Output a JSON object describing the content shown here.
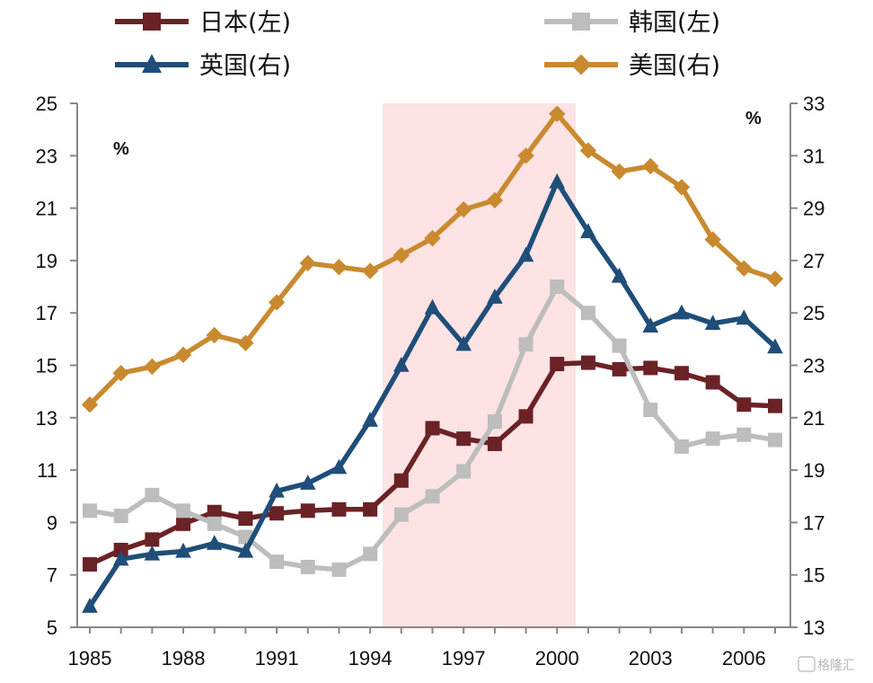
{
  "chart_data": {
    "type": "line",
    "title": "",
    "x": [
      1985,
      1986,
      1987,
      1988,
      1989,
      1990,
      1991,
      1992,
      1993,
      1994,
      1995,
      1996,
      1997,
      1998,
      1999,
      2000,
      2001,
      2002,
      2003,
      2004,
      2005,
      2006,
      2007
    ],
    "x_tick_labels": [
      "1985",
      "1988",
      "1991",
      "1994",
      "1997",
      "2000",
      "2003",
      "2006"
    ],
    "x_tick_values": [
      1985,
      1988,
      1991,
      1994,
      1997,
      2000,
      2003,
      2006
    ],
    "y_left": {
      "unit": "%",
      "ylim": [
        5,
        25
      ],
      "ticks": [
        "5",
        "7",
        "9",
        "11",
        "13",
        "15",
        "17",
        "19",
        "21",
        "23",
        "25"
      ]
    },
    "y_right": {
      "unit": "%",
      "ylim": [
        13,
        33
      ],
      "ticks": [
        "13",
        "15",
        "17",
        "19",
        "21",
        "23",
        "25",
        "27",
        "29",
        "31",
        "33"
      ]
    },
    "shaded_region": {
      "x_start": 1994.4,
      "x_end": 2000.6,
      "color": "#fde3e4"
    },
    "grid": false,
    "legend_position": "top",
    "series": [
      {
        "name": "日本(左)",
        "axis": "left",
        "color": "#6b2226",
        "marker": "square",
        "values": [
          7.4,
          7.95,
          8.35,
          8.95,
          9.4,
          9.15,
          9.35,
          9.45,
          9.5,
          9.5,
          10.6,
          12.6,
          12.2,
          12.0,
          13.05,
          15.05,
          15.1,
          14.85,
          14.9,
          14.7,
          14.35,
          13.5,
          13.45
        ]
      },
      {
        "name": "韩国(左)",
        "axis": "left",
        "color": "#bdbdbd",
        "marker": "square",
        "values": [
          9.45,
          9.25,
          10.05,
          9.45,
          8.95,
          8.45,
          7.5,
          7.3,
          7.2,
          7.8,
          9.3,
          10.0,
          10.95,
          12.85,
          15.8,
          18.0,
          17.0,
          15.75,
          13.3,
          11.9,
          12.2,
          12.35,
          12.15
        ]
      },
      {
        "name": "英国(右)",
        "axis": "right",
        "color": "#1f4e79",
        "marker": "triangle",
        "values": [
          13.8,
          15.6,
          15.8,
          15.9,
          16.2,
          15.9,
          18.2,
          18.5,
          19.1,
          20.9,
          23.0,
          25.2,
          23.8,
          25.6,
          27.2,
          30.0,
          28.1,
          26.4,
          24.5,
          25.0,
          24.6,
          24.8,
          23.7
        ]
      },
      {
        "name": "美国(右)",
        "axis": "right",
        "color": "#c98a2f",
        "marker": "diamond",
        "values": [
          21.5,
          22.7,
          22.95,
          23.4,
          24.15,
          23.85,
          25.4,
          26.9,
          26.75,
          26.6,
          27.2,
          27.85,
          28.95,
          29.3,
          31.0,
          32.6,
          31.2,
          30.4,
          30.6,
          29.8,
          27.8,
          26.7,
          26.3
        ]
      }
    ]
  },
  "watermark": "格隆汇"
}
